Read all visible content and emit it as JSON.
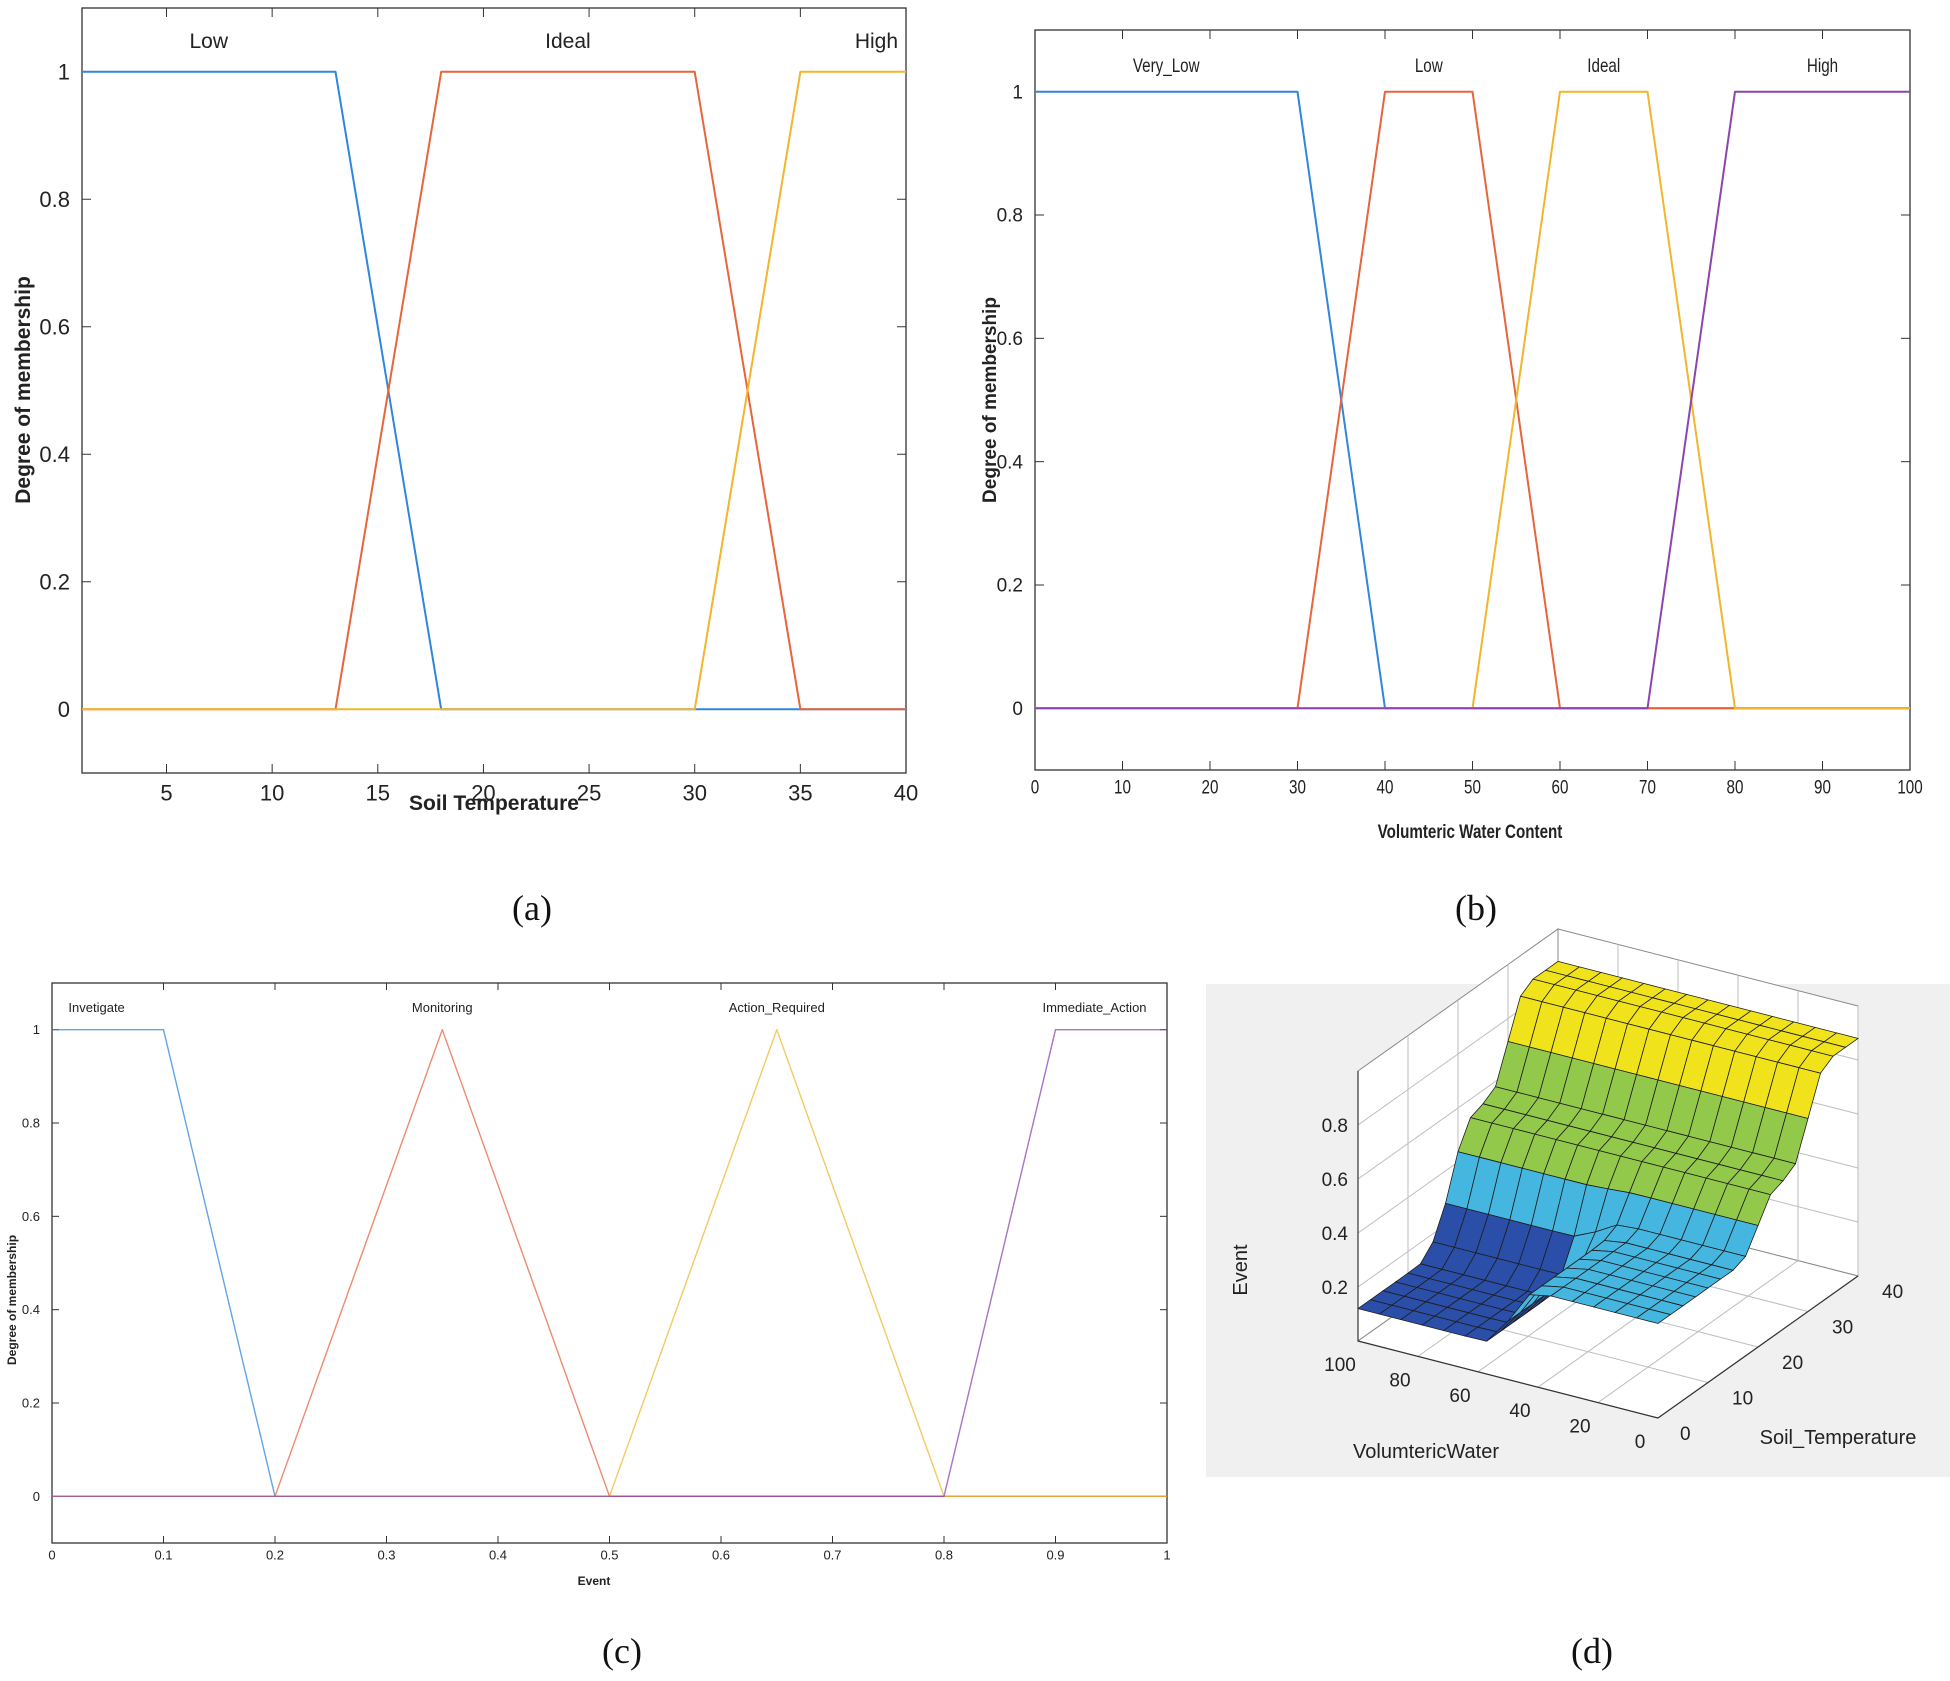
{
  "figure": {
    "captions": [
      "(a)",
      "(b)",
      "(c)",
      "(d)"
    ]
  },
  "chart_data": [
    {
      "id": "a",
      "type": "line",
      "xlabel": "Soil Temperature",
      "ylabel": "Degree of membership",
      "xlim": [
        1,
        40
      ],
      "ylim": [
        -0.1,
        1.1
      ],
      "xticks": [
        5,
        10,
        15,
        20,
        25,
        30,
        35,
        40
      ],
      "yticks": [
        0,
        0.2,
        0.4,
        0.6,
        0.8,
        1
      ],
      "series": [
        {
          "name": "Low",
          "color": "#2e86de",
          "x": [
            1,
            13,
            18,
            40
          ],
          "y": [
            1,
            1,
            0,
            0
          ],
          "label_x": 7
        },
        {
          "name": "Ideal",
          "color": "#e8643b",
          "x": [
            1,
            13,
            18,
            30,
            35,
            40
          ],
          "y": [
            0,
            0,
            1,
            1,
            0,
            0
          ],
          "label_x": 24
        },
        {
          "name": "High",
          "color": "#f2b52c",
          "x": [
            1,
            30,
            35,
            40
          ],
          "y": [
            0,
            0,
            1,
            1
          ],
          "label_x": 38.6
        }
      ]
    },
    {
      "id": "b",
      "type": "line",
      "xlabel": "Volumteric Water Content",
      "ylabel": "Degree of membership",
      "xlim": [
        0,
        100
      ],
      "ylim": [
        -0.1,
        1.1
      ],
      "xticks": [
        0,
        10,
        20,
        30,
        40,
        50,
        60,
        70,
        80,
        90,
        100
      ],
      "yticks": [
        0,
        0.2,
        0.4,
        0.6,
        0.8,
        1
      ],
      "series": [
        {
          "name": "Very_Low",
          "color": "#2e86de",
          "x": [
            0,
            30,
            40,
            100
          ],
          "y": [
            1,
            1,
            0,
            0
          ],
          "label_x": 15
        },
        {
          "name": "Low",
          "color": "#e8643b",
          "x": [
            0,
            30,
            40,
            50,
            60,
            100
          ],
          "y": [
            0,
            0,
            1,
            1,
            0,
            0
          ],
          "label_x": 45
        },
        {
          "name": "Ideal",
          "color": "#f2b52c",
          "x": [
            0,
            50,
            60,
            70,
            80,
            100
          ],
          "y": [
            0,
            0,
            1,
            1,
            0,
            0
          ],
          "label_x": 65
        },
        {
          "name": "High",
          "color": "#8e44ad",
          "x": [
            0,
            70,
            80,
            100
          ],
          "y": [
            0,
            0,
            1,
            1
          ],
          "label_x": 90
        }
      ]
    },
    {
      "id": "c",
      "type": "line",
      "xlabel": "Event",
      "ylabel": "Degree of membership",
      "xlim": [
        0,
        1
      ],
      "ylim": [
        -0.1,
        1.1
      ],
      "xticks": [
        0,
        0.1,
        0.2,
        0.3,
        0.4,
        0.5,
        0.6,
        0.7,
        0.8,
        0.9,
        1
      ],
      "yticks": [
        0,
        0.2,
        0.4,
        0.6,
        0.8,
        1
      ],
      "series": [
        {
          "name": "Invetigate",
          "color": "#2e86de",
          "x": [
            0,
            0.1,
            0.2,
            1
          ],
          "y": [
            1,
            1,
            0,
            0
          ],
          "label_x": 0.04
        },
        {
          "name": "Monitoring",
          "color": "#e8643b",
          "x": [
            0,
            0.2,
            0.35,
            0.5,
            1
          ],
          "y": [
            0,
            0,
            1,
            0,
            0
          ],
          "label_x": 0.35
        },
        {
          "name": "Action_Required",
          "color": "#f2b52c",
          "x": [
            0,
            0.5,
            0.65,
            0.8,
            1
          ],
          "y": [
            0,
            0,
            1,
            0,
            0
          ],
          "label_x": 0.65
        },
        {
          "name": "Immediate_Action",
          "color": "#8e44ad",
          "x": [
            0,
            0.8,
            0.9,
            1
          ],
          "y": [
            0,
            0,
            1,
            1
          ],
          "label_x": 0.935
        }
      ]
    },
    {
      "id": "d",
      "type": "surface",
      "xlabel": "VolumtericWater",
      "ylabel": "Soil_Temperature",
      "zlabel": "Event",
      "x_ticks": [
        100,
        80,
        60,
        40,
        20,
        0
      ],
      "y_ticks": [
        10,
        20,
        30,
        40
      ],
      "z_ticks": [
        0.2,
        0.4,
        0.6,
        0.8
      ],
      "z_levels": {
        "low": 0.12,
        "mid": 0.35,
        "midhigh": 0.55,
        "high": 0.88
      },
      "colors": {
        "low": "#2b4fa8",
        "mid": "#45b6df",
        "midhigh": "#93c94a",
        "high": "#f1e31b",
        "panel": "#f0f0f0"
      }
    }
  ]
}
